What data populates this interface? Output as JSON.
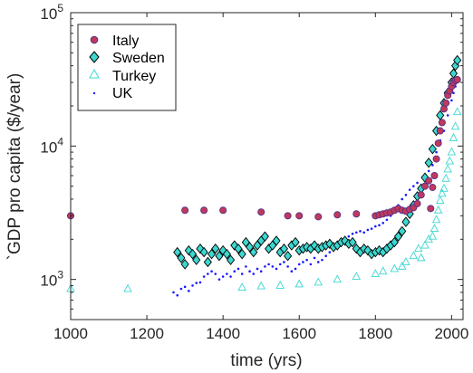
{
  "chart_data": {
    "type": "scatter",
    "xlabel": "time (yrs)",
    "ylabel": "`GDP pro capita ($/year)",
    "xlim": [
      1000,
      2030
    ],
    "ylim": [
      500,
      100000
    ],
    "yscale": "log",
    "xticks": [
      1000,
      1200,
      1400,
      1600,
      1800,
      2000
    ],
    "xtick_labels": [
      "1000",
      "1200",
      "1400",
      "1600",
      "1800",
      "2000"
    ],
    "ytick_labels": [
      {
        "value": 1000,
        "base": "10",
        "exp": "3"
      },
      {
        "value": 10000,
        "base": "10",
        "exp": "4"
      },
      {
        "value": 100000,
        "base": "10",
        "exp": "5"
      }
    ],
    "grid": false,
    "legend_position": "top-left",
    "series": [
      {
        "name": "Italy",
        "marker": "circle",
        "color": "#c0395a",
        "edge": "#4a2d8c",
        "x": [
          1000,
          1300,
          1350,
          1400,
          1500,
          1570,
          1600,
          1650,
          1700,
          1750,
          1800,
          1810,
          1820,
          1830,
          1840,
          1850,
          1860,
          1870,
          1880,
          1890,
          1900,
          1910,
          1920,
          1930,
          1940,
          1945,
          1950,
          1955,
          1960,
          1965,
          1970,
          1975,
          1980,
          1985,
          1990,
          1995,
          2000,
          2005,
          2010,
          2015
        ],
        "y": [
          3000,
          3300,
          3300,
          3300,
          3200,
          3000,
          3000,
          2950,
          3050,
          3100,
          3000,
          3050,
          3100,
          3150,
          3200,
          3300,
          3400,
          3300,
          3250,
          3350,
          3450,
          3700,
          4300,
          5000,
          5500,
          3400,
          4900,
          6000,
          8000,
          10500,
          13000,
          15000,
          19000,
          21000,
          24000,
          26000,
          28000,
          30000,
          31000,
          31500
        ]
      },
      {
        "name": "Sweden",
        "marker": "diamond",
        "color": "#3cd7d0",
        "edge": "#000000",
        "x": [
          1280,
          1290,
          1300,
          1310,
          1320,
          1330,
          1340,
          1350,
          1360,
          1370,
          1380,
          1390,
          1400,
          1410,
          1420,
          1430,
          1440,
          1450,
          1460,
          1470,
          1480,
          1490,
          1500,
          1510,
          1520,
          1530,
          1540,
          1550,
          1560,
          1570,
          1580,
          1590,
          1600,
          1610,
          1620,
          1630,
          1640,
          1650,
          1660,
          1670,
          1680,
          1690,
          1700,
          1710,
          1720,
          1730,
          1740,
          1750,
          1760,
          1770,
          1780,
          1790,
          1800,
          1810,
          1820,
          1830,
          1840,
          1850,
          1860,
          1870,
          1880,
          1890,
          1900,
          1910,
          1920,
          1930,
          1940,
          1950,
          1960,
          1970,
          1980,
          1990,
          2000,
          2005,
          2010,
          2015
        ],
        "y": [
          1600,
          1450,
          1300,
          1650,
          1550,
          1400,
          1700,
          1600,
          1350,
          1550,
          1700,
          1500,
          1650,
          1550,
          1400,
          1800,
          1700,
          1550,
          1900,
          1750,
          1600,
          1800,
          1950,
          2100,
          1700,
          1800,
          1950,
          1600,
          1700,
          1500,
          1800,
          1900,
          1650,
          1700,
          1750,
          1700,
          1800,
          1700,
          1750,
          1800,
          1850,
          1750,
          1800,
          1900,
          1950,
          1850,
          1900,
          1700,
          1600,
          1700,
          1650,
          1550,
          1600,
          1650,
          1600,
          1700,
          1800,
          1900,
          2100,
          2300,
          2700,
          3100,
          3600,
          4200,
          4800,
          5800,
          7500,
          9500,
          13000,
          17000,
          21000,
          25000,
          30000,
          35000,
          40000,
          44000
        ]
      },
      {
        "name": "Turkey",
        "marker": "triangle",
        "color": "#3cd7d0",
        "edge": "#3cd7d0",
        "x": [
          1000,
          1150,
          1450,
          1500,
          1550,
          1600,
          1650,
          1700,
          1750,
          1800,
          1820,
          1850,
          1870,
          1880,
          1900,
          1913,
          1920,
          1930,
          1940,
          1950,
          1955,
          1960,
          1965,
          1970,
          1975,
          1980,
          1985,
          1990,
          1995,
          2000,
          2005,
          2010,
          2015
        ],
        "y": [
          850,
          850,
          870,
          890,
          900,
          920,
          950,
          1000,
          1050,
          1100,
          1150,
          1200,
          1250,
          1350,
          1500,
          1700,
          1450,
          1800,
          2000,
          2100,
          2400,
          2800,
          3300,
          3900,
          4400,
          4800,
          5700,
          6700,
          7700,
          9000,
          11500,
          14000,
          18000
        ]
      },
      {
        "name": "UK",
        "marker": "point",
        "color": "#1a1aff",
        "edge": "#1a1aff",
        "x": [
          1270,
          1280,
          1290,
          1300,
          1310,
          1320,
          1330,
          1340,
          1350,
          1360,
          1370,
          1380,
          1390,
          1400,
          1410,
          1420,
          1430,
          1440,
          1450,
          1460,
          1470,
          1480,
          1490,
          1500,
          1510,
          1520,
          1530,
          1540,
          1550,
          1560,
          1570,
          1580,
          1590,
          1600,
          1610,
          1620,
          1630,
          1640,
          1650,
          1660,
          1670,
          1680,
          1690,
          1700,
          1710,
          1720,
          1730,
          1740,
          1750,
          1760,
          1770,
          1780,
          1790,
          1800,
          1810,
          1820,
          1830,
          1840,
          1850,
          1860,
          1870,
          1880,
          1890,
          1900,
          1910,
          1920,
          1930,
          1940,
          1950,
          1960,
          1970,
          1980,
          1990,
          2000,
          2005,
          2010,
          2015
        ],
        "y": [
          800,
          760,
          850,
          880,
          820,
          900,
          940,
          950,
          1050,
          1100,
          1150,
          1100,
          1000,
          1050,
          1100,
          1050,
          1150,
          1200,
          1100,
          1250,
          1150,
          1100,
          1200,
          1150,
          1250,
          1300,
          1250,
          1200,
          1300,
          1350,
          1250,
          1150,
          1200,
          1300,
          1350,
          1400,
          1300,
          1450,
          1350,
          1400,
          1500,
          1600,
          1750,
          1800,
          1900,
          2000,
          2100,
          2200,
          2250,
          2300,
          2250,
          2350,
          2400,
          2500,
          2550,
          2650,
          2800,
          3000,
          3300,
          3600,
          4000,
          4300,
          4700,
          5000,
          5300,
          5000,
          5700,
          6500,
          7200,
          9000,
          11000,
          13000,
          17000,
          22000,
          25000,
          28000,
          30000
        ]
      }
    ]
  }
}
